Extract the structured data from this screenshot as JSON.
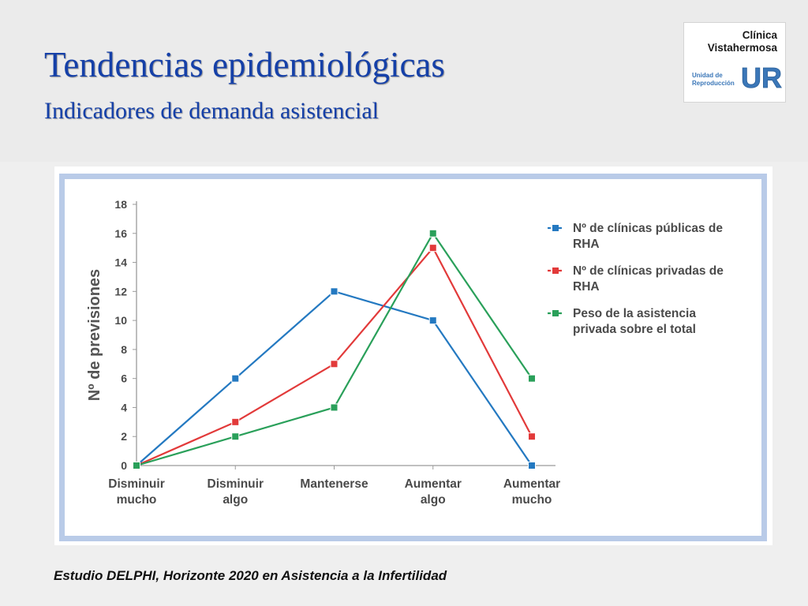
{
  "slide": {
    "title": "Tendencias epidemiológicas",
    "subtitle": "Indicadores de demanda asistencial",
    "footnote": "Estudio DELPHI, Horizonte 2020 en Asistencia a la Infertilidad"
  },
  "logo": {
    "name_line1": "Clínica",
    "name_line2": "Vistahermosa",
    "unit_line1": "Unidad de",
    "unit_line2": "Reproducción",
    "mark_text": "UR",
    "colors": {
      "mark": "#3b77b8",
      "name": "#1a1a1a"
    }
  },
  "chart_data": {
    "type": "line",
    "categories": [
      [
        "Disminuir",
        "mucho"
      ],
      [
        "Disminuir",
        "algo"
      ],
      [
        "Mantenerse"
      ],
      [
        "Aumentar",
        "algo"
      ],
      [
        "Aumentar",
        "mucho"
      ]
    ],
    "ylabel": "Nº de previsiones",
    "ylim": [
      0,
      18
    ],
    "yticks": [
      0,
      2,
      4,
      6,
      8,
      10,
      12,
      14,
      16,
      18
    ],
    "grid": false,
    "legend_position": "top-right",
    "series": [
      {
        "name": [
          "Nº de clínicas públicas de",
          "RHA"
        ],
        "values": [
          0,
          6,
          12,
          10,
          0
        ],
        "color": "#2479c1"
      },
      {
        "name": [
          "Nº de clínicas privadas de",
          "RHA"
        ],
        "values": [
          0,
          3,
          7,
          15,
          2
        ],
        "color": "#e23a3a"
      },
      {
        "name": [
          "Peso de la asistencia",
          "privada sobre el total"
        ],
        "values": [
          0,
          2,
          4,
          16,
          6
        ],
        "color": "#2aa05a"
      }
    ],
    "colors": {
      "axis": "#9a9a9a",
      "tick_label": "#4a4a4a",
      "frame": "#b9cbe8"
    }
  }
}
